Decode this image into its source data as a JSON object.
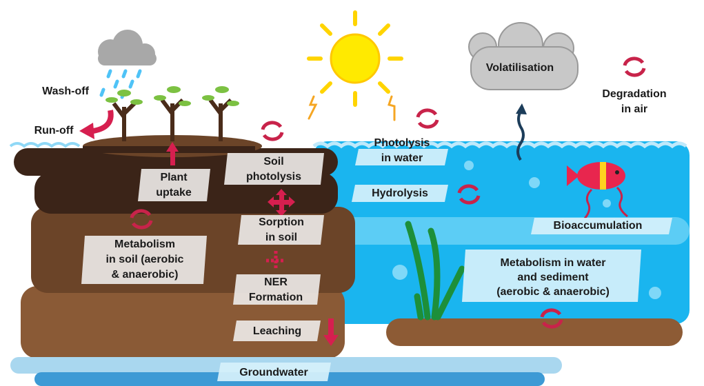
{
  "labels": {
    "wash_off": [
      "Wash-off"
    ],
    "run_off": [
      "Run-off"
    ],
    "plant_uptake": [
      "Plant",
      "uptake"
    ],
    "soil_photolysis": [
      "Soil",
      "photolysis"
    ],
    "sorption": [
      "Sorption",
      "in soil"
    ],
    "ner": [
      "NER",
      "Formation"
    ],
    "leaching": [
      "Leaching"
    ],
    "metabolism_soil": [
      "Metabolism",
      "in soil (aerobic",
      "& anaerobic)"
    ],
    "groundwater": [
      "Groundwater"
    ],
    "photolysis_water": [
      "Photolysis",
      "in water"
    ],
    "hydrolysis": [
      "Hydrolysis"
    ],
    "volatilisation": [
      "Volatilisation"
    ],
    "degradation_air": [
      "Degradation",
      "in air"
    ],
    "bioaccumulation": [
      "Bioaccumulation"
    ],
    "metabolism_water": [
      "Metabolism in water",
      "and sediment",
      "(aerobic & anaerobic)"
    ]
  }
}
